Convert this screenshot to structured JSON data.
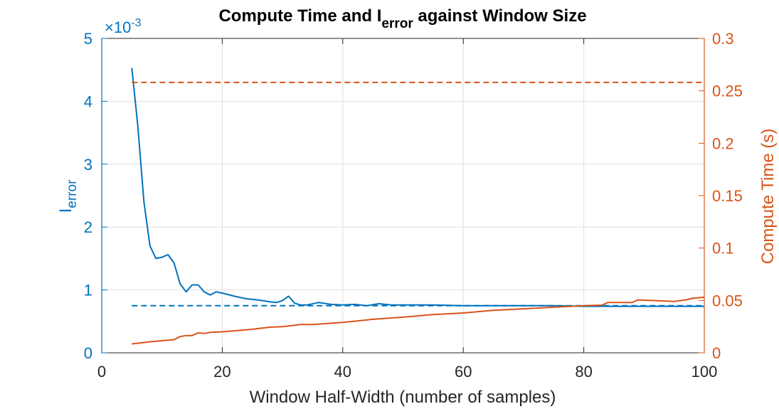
{
  "chart_data": {
    "type": "line",
    "title": {
      "prefix": "Compute Time and I",
      "subscript": "error",
      "suffix": " against Window Size"
    },
    "xlabel": "Window Half-Width (number of samples)",
    "ylabel_left": {
      "main": "I",
      "subscript": "error"
    },
    "ylabel_right": "Compute Time (s)",
    "y_left_exponent": {
      "prefix": "×10",
      "power": "-3"
    },
    "xlim": [
      0,
      100
    ],
    "ylim_left": [
      0,
      5
    ],
    "ylim_right": [
      0,
      0.3
    ],
    "x_ticks": [
      "0",
      "20",
      "40",
      "60",
      "80",
      "100"
    ],
    "y_left_ticks": [
      "0",
      "1",
      "2",
      "3",
      "4",
      "5"
    ],
    "y_right_ticks": [
      "0",
      "0.05",
      "0.1",
      "0.15",
      "0.2",
      "0.25",
      "0.3"
    ],
    "grid": true,
    "colors": {
      "left": "#0072BD",
      "right": "#D95319",
      "grid": "#DFDFDF",
      "box": "#262626"
    },
    "series": [
      {
        "axis": "left",
        "style": "solid",
        "x": [
          5,
          6,
          7,
          8,
          9,
          10,
          11,
          12,
          13,
          14,
          15,
          16,
          17,
          18,
          19,
          20,
          22,
          24,
          26,
          28,
          29,
          30,
          31,
          32,
          33,
          34,
          36,
          38,
          40,
          42,
          44,
          46,
          47,
          48,
          50,
          55,
          60,
          65,
          70,
          75,
          80,
          85,
          90,
          95,
          100
        ],
        "y": [
          4.53,
          3.6,
          2.4,
          1.7,
          1.5,
          1.52,
          1.56,
          1.43,
          1.1,
          0.97,
          1.08,
          1.08,
          0.97,
          0.92,
          0.97,
          0.95,
          0.9,
          0.86,
          0.84,
          0.81,
          0.8,
          0.83,
          0.9,
          0.79,
          0.76,
          0.76,
          0.8,
          0.77,
          0.76,
          0.77,
          0.75,
          0.78,
          0.77,
          0.76,
          0.76,
          0.76,
          0.75,
          0.75,
          0.75,
          0.75,
          0.74,
          0.74,
          0.74,
          0.74,
          0.74
        ]
      },
      {
        "axis": "left",
        "style": "dashed",
        "x": [
          5,
          100
        ],
        "y": [
          0.75,
          0.75
        ]
      },
      {
        "axis": "right",
        "style": "solid",
        "x": [
          5,
          8,
          11,
          12,
          13,
          14,
          15,
          16,
          17,
          18,
          20,
          22,
          25,
          28,
          30,
          33,
          35,
          40,
          45,
          50,
          55,
          60,
          65,
          70,
          75,
          80,
          83,
          84,
          88,
          89,
          95,
          97,
          98,
          100
        ],
        "y": [
          0.0085,
          0.0105,
          0.012,
          0.0125,
          0.0155,
          0.0165,
          0.0165,
          0.019,
          0.0185,
          0.0195,
          0.02,
          0.021,
          0.0225,
          0.0245,
          0.025,
          0.027,
          0.027,
          0.029,
          0.032,
          0.034,
          0.0365,
          0.038,
          0.0405,
          0.042,
          0.0435,
          0.045,
          0.0455,
          0.048,
          0.048,
          0.0505,
          0.049,
          0.0505,
          0.052,
          0.053
        ]
      },
      {
        "axis": "right",
        "style": "dashed",
        "x": [
          5,
          100
        ],
        "y": [
          0.258,
          0.258
        ]
      }
    ]
  }
}
